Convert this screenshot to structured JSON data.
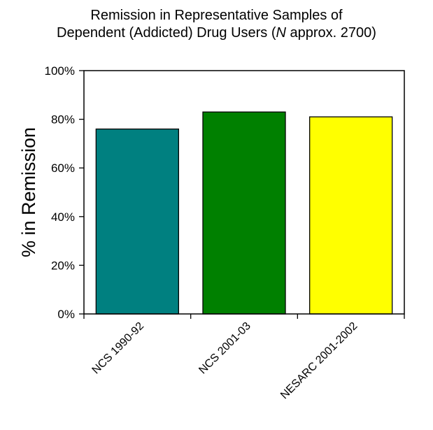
{
  "chart_data": {
    "type": "bar",
    "title_line1": "Remission in Representative Samples of",
    "title_line2_prefix": "Dependent (Addicted) Drug Users (",
    "title_line2_italic": "N",
    "title_line2_suffix": " approx. 2700)",
    "ylabel": "% in Remission",
    "xlabel": "",
    "categories": [
      "NCS 1990-92",
      "NCS 2001-03",
      "NESARC 2001-2002"
    ],
    "values": [
      76,
      83,
      81
    ],
    "colors": [
      "#008080",
      "#008000",
      "#ffff00"
    ],
    "ylim": [
      0,
      100
    ],
    "yticks": [
      0,
      20,
      40,
      60,
      80,
      100
    ],
    "ytick_labels": [
      "0%",
      "20%",
      "40%",
      "60%",
      "80%",
      "100%"
    ],
    "grid": false,
    "legend": "none"
  }
}
